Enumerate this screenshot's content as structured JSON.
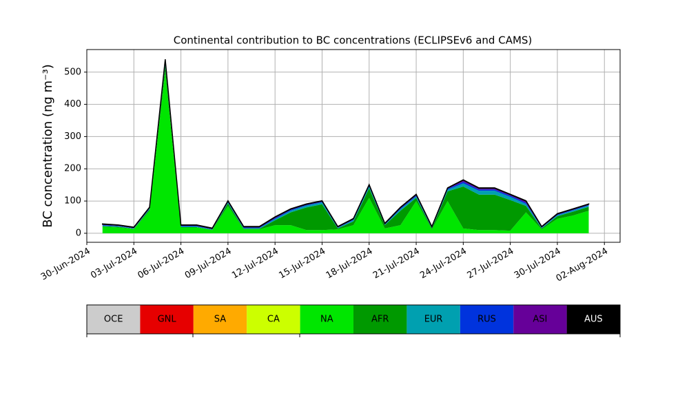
{
  "chart_data": {
    "type": "stacked_area",
    "title": "Continental contribution to BC concentrations (ECLIPSEv6 and CAMS)",
    "y_label": "BC concentration (ng m⁻³)",
    "x": [
      "2024-07-01",
      "2024-07-02",
      "2024-07-03",
      "2024-07-04",
      "2024-07-05",
      "2024-07-06",
      "2024-07-07",
      "2024-07-08",
      "2024-07-09",
      "2024-07-10",
      "2024-07-11",
      "2024-07-12",
      "2024-07-13",
      "2024-07-14",
      "2024-07-15",
      "2024-07-16",
      "2024-07-17",
      "2024-07-18",
      "2024-07-19",
      "2024-07-20",
      "2024-07-21",
      "2024-07-22",
      "2024-07-23",
      "2024-07-24",
      "2024-07-25",
      "2024-07-26",
      "2024-07-27",
      "2024-07-28",
      "2024-07-29",
      "2024-07-30",
      "2024-07-31",
      "2024-08-01"
    ],
    "series": [
      {
        "name": "OCE",
        "color": "#cccccc",
        "values": [
          0,
          0,
          0,
          0,
          0,
          0,
          0,
          0,
          0,
          0,
          0,
          0,
          0,
          0,
          0,
          0,
          0,
          0,
          0,
          0,
          0,
          0,
          0,
          0,
          0,
          0,
          0,
          0,
          0,
          0,
          0,
          0
        ]
      },
      {
        "name": "GNL",
        "color": "#e60000",
        "values": [
          0,
          0,
          0,
          0,
          0,
          0,
          0,
          0,
          0,
          0,
          0,
          0,
          0,
          0,
          0,
          0,
          0,
          0,
          0,
          0,
          0,
          0,
          0,
          0,
          0,
          0,
          0,
          0,
          0,
          0,
          0,
          0
        ]
      },
      {
        "name": "SA",
        "color": "#ffaa00",
        "values": [
          0,
          0,
          0,
          0,
          0,
          0,
          0,
          0,
          0,
          0,
          0,
          0,
          0,
          0,
          0,
          0,
          0,
          0,
          0,
          0,
          0,
          0,
          0,
          0,
          0,
          0,
          0,
          0,
          0,
          0,
          0,
          0
        ]
      },
      {
        "name": "CA",
        "color": "#ccff00",
        "values": [
          0,
          0,
          0,
          0,
          0,
          0,
          0,
          0,
          0,
          0,
          0,
          0,
          0,
          0,
          0,
          0,
          0,
          0,
          0,
          0,
          0,
          0,
          0,
          0,
          0,
          0,
          0,
          0,
          0,
          0,
          0,
          0
        ]
      },
      {
        "name": "NA",
        "color": "#00e600",
        "values": [
          20,
          18,
          13,
          70,
          500,
          18,
          18,
          10,
          85,
          12,
          12,
          25,
          25,
          10,
          10,
          12,
          25,
          110,
          15,
          25,
          100,
          12,
          100,
          15,
          10,
          10,
          8,
          65,
          12,
          45,
          55,
          70
        ]
      },
      {
        "name": "AFR",
        "color": "#009900",
        "values": [
          2,
          2,
          1,
          4,
          20,
          1,
          1,
          1,
          8,
          2,
          2,
          15,
          40,
          70,
          80,
          3,
          12,
          30,
          10,
          45,
          10,
          3,
          30,
          130,
          110,
          110,
          95,
          20,
          3,
          8,
          12,
          12
        ]
      },
      {
        "name": "EUR",
        "color": "#00a0b0",
        "values": [
          2,
          2,
          1,
          2,
          8,
          2,
          2,
          1,
          3,
          2,
          2,
          4,
          5,
          6,
          6,
          2,
          4,
          5,
          2,
          5,
          4,
          2,
          5,
          10,
          12,
          12,
          10,
          6,
          2,
          3,
          4,
          4
        ]
      },
      {
        "name": "RUS",
        "color": "#0033dd",
        "values": [
          2,
          1,
          1,
          2,
          6,
          2,
          2,
          1,
          2,
          2,
          2,
          3,
          3,
          2,
          2,
          1,
          2,
          3,
          2,
          3,
          3,
          1,
          3,
          5,
          4,
          4,
          4,
          4,
          1,
          2,
          2,
          2
        ]
      },
      {
        "name": "ASI",
        "color": "#660099",
        "values": [
          2,
          2,
          2,
          2,
          5,
          2,
          2,
          2,
          2,
          2,
          2,
          3,
          2,
          2,
          2,
          2,
          2,
          2,
          1,
          2,
          3,
          2,
          2,
          5,
          4,
          4,
          3,
          5,
          2,
          2,
          2,
          2
        ]
      },
      {
        "name": "AUS",
        "color": "#000000",
        "values": [
          1,
          1,
          1,
          1,
          1,
          1,
          1,
          1,
          1,
          1,
          1,
          1,
          1,
          1,
          1,
          1,
          1,
          1,
          1,
          1,
          1,
          1,
          1,
          1,
          1,
          1,
          1,
          1,
          1,
          1,
          1,
          1
        ]
      }
    ],
    "xlim": [
      "2024-06-30",
      "2024-08-03"
    ],
    "xticks": [
      {
        "value": "2024-06-30",
        "label": "30-Jun-2024"
      },
      {
        "value": "2024-07-03",
        "label": "03-Jul-2024"
      },
      {
        "value": "2024-07-06",
        "label": "06-Jul-2024"
      },
      {
        "value": "2024-07-09",
        "label": "09-Jul-2024"
      },
      {
        "value": "2024-07-12",
        "label": "12-Jul-2024"
      },
      {
        "value": "2024-07-15",
        "label": "15-Jul-2024"
      },
      {
        "value": "2024-07-18",
        "label": "18-Jul-2024"
      },
      {
        "value": "2024-07-21",
        "label": "21-Jul-2024"
      },
      {
        "value": "2024-07-24",
        "label": "24-Jul-2024"
      },
      {
        "value": "2024-07-27",
        "label": "27-Jul-2024"
      },
      {
        "value": "2024-07-30",
        "label": "30-Jul-2024"
      },
      {
        "value": "2024-08-02",
        "label": "02-Aug-2024"
      }
    ],
    "ylim": [
      -28,
      570
    ],
    "yticks": [
      0,
      100,
      200,
      300,
      400,
      500
    ],
    "grid": true
  }
}
